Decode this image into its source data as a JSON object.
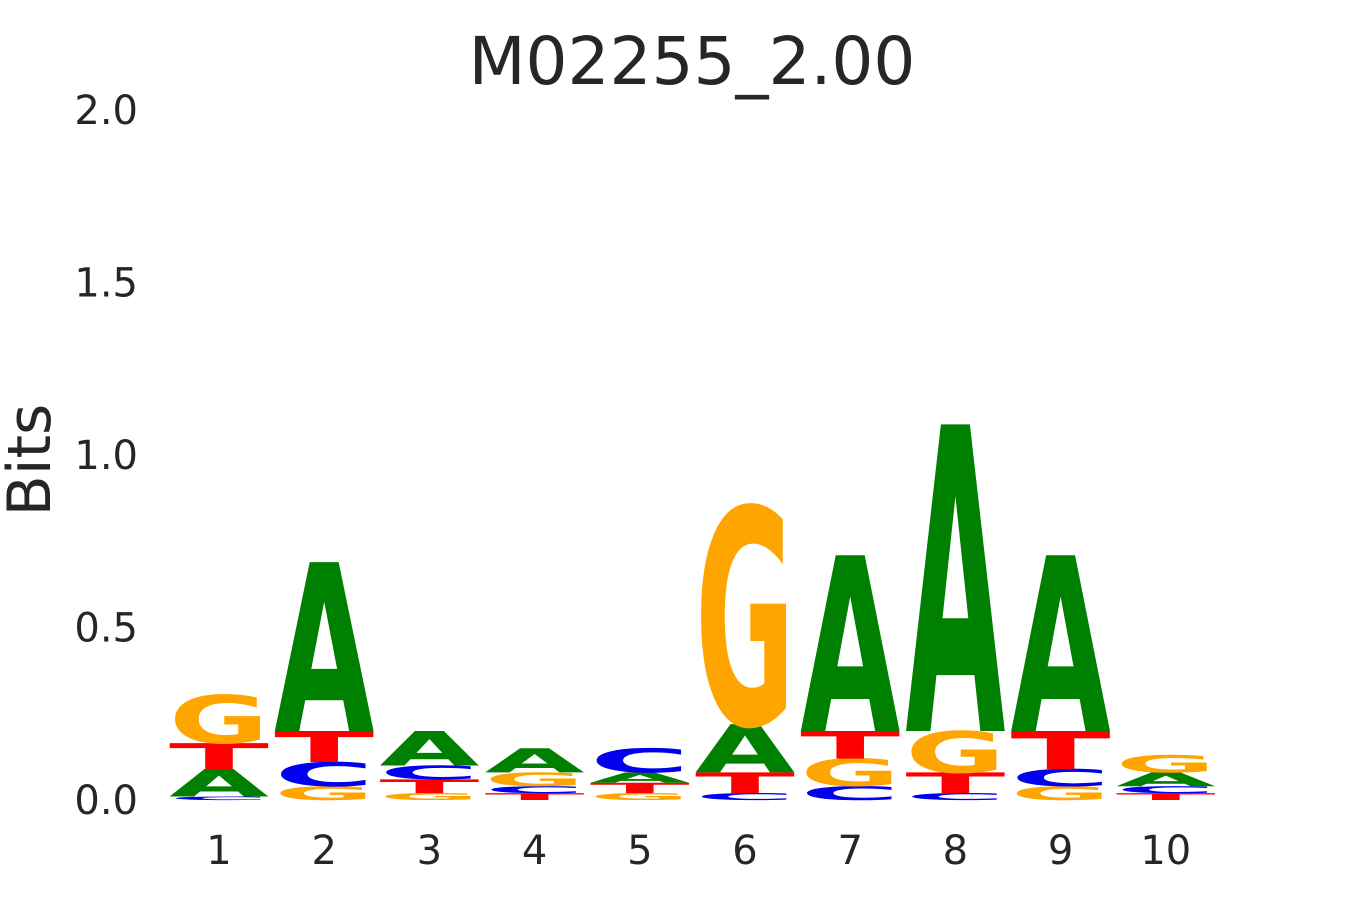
{
  "chart_data": {
    "type": "sequence-logo",
    "title": "M02255_2.00",
    "xlabel": "",
    "ylabel": "Bits",
    "ylim": [
      0,
      2.0
    ],
    "yticks": [
      "0.0",
      "0.5",
      "1.0",
      "1.5",
      "2.0"
    ],
    "positions": [
      "1",
      "2",
      "3",
      "4",
      "5",
      "6",
      "7",
      "8",
      "9",
      "10"
    ],
    "colors": {
      "A": "#008000",
      "C": "#0000ee",
      "G": "#ffa500",
      "T": "#ff0000"
    },
    "stacks": [
      [
        {
          "base": "C",
          "bits": 0.01
        },
        {
          "base": "A",
          "bits": 0.08
        },
        {
          "base": "T",
          "bits": 0.075
        },
        {
          "base": "G",
          "bits": 0.14
        }
      ],
      [
        {
          "base": "G",
          "bits": 0.04
        },
        {
          "base": "C",
          "bits": 0.07
        },
        {
          "base": "T",
          "bits": 0.09
        },
        {
          "base": "A",
          "bits": 0.49
        }
      ],
      [
        {
          "base": "G",
          "bits": 0.02
        },
        {
          "base": "T",
          "bits": 0.04
        },
        {
          "base": "C",
          "bits": 0.04
        },
        {
          "base": "A",
          "bits": 0.1
        }
      ],
      [
        {
          "base": "T",
          "bits": 0.02
        },
        {
          "base": "C",
          "bits": 0.02
        },
        {
          "base": "G",
          "bits": 0.04
        },
        {
          "base": "A",
          "bits": 0.07
        }
      ],
      [
        {
          "base": "G",
          "bits": 0.02
        },
        {
          "base": "T",
          "bits": 0.03
        },
        {
          "base": "A",
          "bits": 0.03
        },
        {
          "base": "C",
          "bits": 0.07
        }
      ],
      [
        {
          "base": "C",
          "bits": 0.02
        },
        {
          "base": "T",
          "bits": 0.06
        },
        {
          "base": "A",
          "bits": 0.14
        },
        {
          "base": "G",
          "bits": 0.63
        }
      ],
      [
        {
          "base": "C",
          "bits": 0.04
        },
        {
          "base": "G",
          "bits": 0.08
        },
        {
          "base": "T",
          "bits": 0.08
        },
        {
          "base": "A",
          "bits": 0.51
        }
      ],
      [
        {
          "base": "C",
          "bits": 0.02
        },
        {
          "base": "T",
          "bits": 0.06
        },
        {
          "base": "G",
          "bits": 0.12
        },
        {
          "base": "A",
          "bits": 0.89
        }
      ],
      [
        {
          "base": "G",
          "bits": 0.04
        },
        {
          "base": "C",
          "bits": 0.05
        },
        {
          "base": "T",
          "bits": 0.11
        },
        {
          "base": "A",
          "bits": 0.51
        }
      ],
      [
        {
          "base": "T",
          "bits": 0.02
        },
        {
          "base": "C",
          "bits": 0.02
        },
        {
          "base": "A",
          "bits": 0.04
        },
        {
          "base": "G",
          "bits": 0.05
        }
      ]
    ]
  }
}
